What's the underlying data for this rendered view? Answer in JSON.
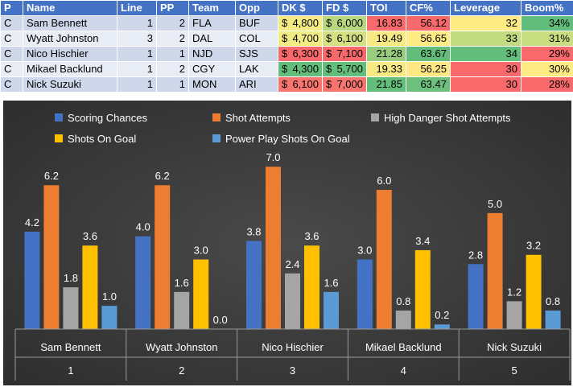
{
  "table": {
    "headers": [
      "P",
      "Name",
      "Line",
      "PP",
      "Team",
      "Opp",
      "DK $",
      "FD $",
      "TOI",
      "CF%",
      "Leverage",
      "Boom%"
    ],
    "rows": [
      {
        "pos": "C",
        "name": "Sam Bennett",
        "line": "1",
        "pp": "2",
        "team": "FLA",
        "opp": "BUF",
        "dk": "4,800",
        "fd": "6,000",
        "toi": "16.83",
        "cf": "56.12",
        "leverage": "32",
        "boom": "34%"
      },
      {
        "pos": "C",
        "name": "Wyatt Johnston",
        "line": "3",
        "pp": "2",
        "team": "DAL",
        "opp": "COL",
        "dk": "4,700",
        "fd": "6,100",
        "toi": "19.49",
        "cf": "56.65",
        "leverage": "33",
        "boom": "31%"
      },
      {
        "pos": "C",
        "name": "Nico Hischier",
        "line": "1",
        "pp": "1",
        "team": "NJD",
        "opp": "SJS",
        "dk": "6,300",
        "fd": "7,100",
        "toi": "21.28",
        "cf": "63.67",
        "leverage": "34",
        "boom": "29%"
      },
      {
        "pos": "C",
        "name": "Mikael Backlund",
        "line": "1",
        "pp": "2",
        "team": "CGY",
        "opp": "LAK",
        "dk": "4,300",
        "fd": "5,700",
        "toi": "19.33",
        "cf": "56.25",
        "leverage": "30",
        "boom": "30%"
      },
      {
        "pos": "C",
        "name": "Nick Suzuki",
        "line": "1",
        "pp": "1",
        "team": "MON",
        "opp": "ARI",
        "dk": "6,100",
        "fd": "7,000",
        "toi": "21.85",
        "cf": "63.47",
        "leverage": "30",
        "boom": "28%"
      }
    ],
    "currency_symbol": "$",
    "cell_colors": {
      "dk": [
        "#f4eb84",
        "#f3ec84",
        "#f8696b",
        "#63be7b",
        "#f8756f"
      ],
      "fd": [
        "#b8d87f",
        "#d4e082",
        "#f8696b",
        "#63be7b",
        "#f8756f"
      ],
      "toi": [
        "#f8696b",
        "#f7e984",
        "#97cd7e",
        "#f7e984",
        "#63be7b"
      ],
      "cf": [
        "#f8696b",
        "#ffeb84",
        "#63be7b",
        "#ffe883",
        "#6cc07c"
      ],
      "leverage": [
        "#ffeb84",
        "#c2db80",
        "#63be7b",
        "#f8696b",
        "#f8696b"
      ],
      "boom": [
        "#63be7b",
        "#c9dd81",
        "#f8696b",
        "#ffeb84",
        "#f8696b"
      ]
    }
  },
  "chart_data": {
    "type": "bar",
    "categories": [
      "Sam Bennett",
      "Wyatt Johnston",
      "Nico Hischier",
      "Mikael Backlund",
      "Nick Suzuki"
    ],
    "category_groups": [
      "1",
      "2",
      "3",
      "4",
      "5"
    ],
    "series": [
      {
        "name": "Scoring Chances",
        "values": [
          4.2,
          4.0,
          3.8,
          3.0,
          2.8
        ],
        "color": "#4472c4"
      },
      {
        "name": "Shot Attempts",
        "values": [
          6.2,
          6.2,
          7.0,
          6.0,
          5.0
        ],
        "color": "#ed7d31"
      },
      {
        "name": "High Danger Shot Attempts",
        "values": [
          1.8,
          1.6,
          2.4,
          0.8,
          1.2
        ],
        "color": "#a5a5a5"
      },
      {
        "name": "Shots On Goal",
        "values": [
          3.6,
          3.0,
          3.6,
          3.4,
          3.2
        ],
        "color": "#ffc000"
      },
      {
        "name": "Power Play Shots On Goal",
        "values": [
          1.0,
          0.0,
          1.6,
          0.2,
          0.8
        ],
        "color": "#5b9bd5"
      }
    ],
    "value_labels": [
      [
        "4.2",
        "6.2",
        "1.8",
        "3.6",
        "1.0"
      ],
      [
        "4.0",
        "6.2",
        "1.6",
        "3.0",
        "0.0"
      ],
      [
        "3.8",
        "7.0",
        "2.4",
        "3.6",
        "1.6"
      ],
      [
        "3.0",
        "6.0",
        "0.8",
        "3.4",
        "0.2"
      ],
      [
        "2.8",
        "5.0",
        "1.2",
        "3.2",
        "0.8"
      ]
    ],
    "ylim": [
      0,
      7.7
    ],
    "legend_position": "top",
    "title": "",
    "xlabel": "",
    "ylabel": ""
  }
}
